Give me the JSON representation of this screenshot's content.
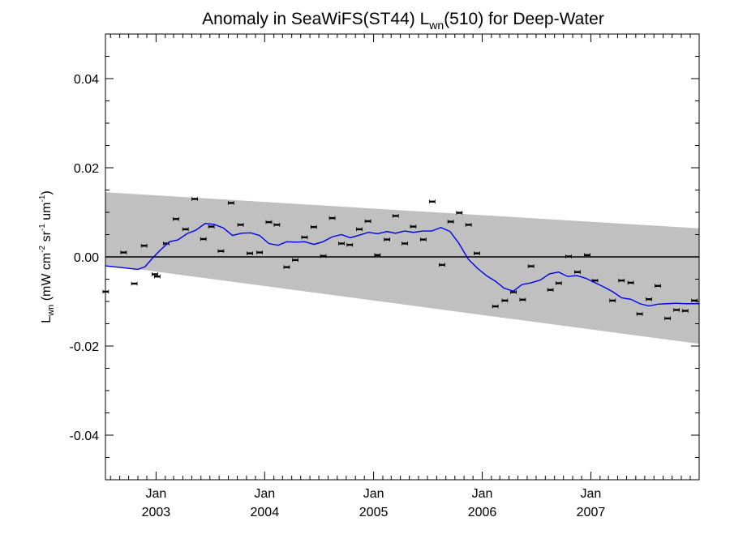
{
  "chart_data": {
    "type": "line",
    "title_parts": {
      "prefix": "Anomaly in SeaWiFS(ST44) L",
      "sub": "wn",
      "suffix": "(510) for Deep-Water"
    },
    "ylabel_parts": {
      "base": "L",
      "sub": "wn",
      "units_open": " (mW cm",
      "exp1": "-2",
      "mid1": " sr",
      "exp2": "-1",
      "mid2": " um",
      "exp3": "-1",
      "close": ")"
    },
    "xlim": [
      "2002-07-15",
      "2007-12-31"
    ],
    "ylim": [
      -0.05,
      0.05
    ],
    "yticks": [
      {
        "value": 0.04,
        "label": "0.04"
      },
      {
        "value": 0.02,
        "label": "0.02"
      },
      {
        "value": 0.0,
        "label": "0.00"
      },
      {
        "value": -0.02,
        "label": "-0.02"
      },
      {
        "value": -0.04,
        "label": "-0.04"
      }
    ],
    "xticks": [
      {
        "date": "2003-01-01",
        "month": "Jan",
        "year": "2003"
      },
      {
        "date": "2004-01-01",
        "month": "Jan",
        "year": "2004"
      },
      {
        "date": "2005-01-01",
        "month": "Jan",
        "year": "2005"
      },
      {
        "date": "2006-01-01",
        "month": "Jan",
        "year": "2006"
      },
      {
        "date": "2007-01-01",
        "month": "Jan",
        "year": "2007"
      }
    ],
    "band": {
      "color": "#c0c0c0",
      "start": {
        "x": "2002-07-15",
        "upper": 0.0145,
        "lower": -0.0018
      },
      "end": {
        "x": "2007-12-31",
        "upper": 0.0064,
        "lower": -0.0195
      }
    },
    "zero_line": {
      "y": 0.0,
      "color": "#000000"
    },
    "series": [
      {
        "kind": "points",
        "color": "#000000",
        "points": [
          {
            "x": "2002-07-16",
            "y": -0.0078
          },
          {
            "x": "2002-09-14",
            "y": 0.001
          },
          {
            "x": "2002-10-20",
            "y": -0.006
          },
          {
            "x": "2002-11-22",
            "y": 0.0025
          },
          {
            "x": "2002-12-28",
            "y": -0.0039
          },
          {
            "x": "2003-01-05",
            "y": -0.0044
          },
          {
            "x": "2003-02-04",
            "y": 0.003
          },
          {
            "x": "2003-03-09",
            "y": 0.0085
          },
          {
            "x": "2003-04-10",
            "y": 0.0062
          },
          {
            "x": "2003-05-11",
            "y": 0.013
          },
          {
            "x": "2003-06-09",
            "y": 0.004
          },
          {
            "x": "2003-07-06",
            "y": 0.0068
          },
          {
            "x": "2003-08-07",
            "y": 0.0013
          },
          {
            "x": "2003-09-10",
            "y": 0.0121
          },
          {
            "x": "2003-10-12",
            "y": 0.0072
          },
          {
            "x": "2003-11-12",
            "y": 0.0008
          },
          {
            "x": "2003-12-15",
            "y": 0.001
          },
          {
            "x": "2004-01-15",
            "y": 0.0078
          },
          {
            "x": "2004-02-11",
            "y": 0.0072
          },
          {
            "x": "2004-03-15",
            "y": -0.0023
          },
          {
            "x": "2004-04-13",
            "y": -0.0007
          },
          {
            "x": "2004-05-14",
            "y": 0.0044
          },
          {
            "x": "2004-06-14",
            "y": 0.0067
          },
          {
            "x": "2004-07-16",
            "y": 0.0002
          },
          {
            "x": "2004-08-15",
            "y": 0.0087
          },
          {
            "x": "2004-09-15",
            "y": 0.003
          },
          {
            "x": "2004-10-13",
            "y": 0.0027
          },
          {
            "x": "2004-11-14",
            "y": 0.0062
          },
          {
            "x": "2004-12-13",
            "y": 0.008
          },
          {
            "x": "2005-01-14",
            "y": 0.0004
          },
          {
            "x": "2005-02-15",
            "y": 0.0039
          },
          {
            "x": "2005-03-16",
            "y": 0.0092
          },
          {
            "x": "2005-04-16",
            "y": 0.003
          },
          {
            "x": "2005-05-14",
            "y": 0.0068
          },
          {
            "x": "2005-06-17",
            "y": 0.0039
          },
          {
            "x": "2005-07-17",
            "y": 0.0124
          },
          {
            "x": "2005-08-19",
            "y": -0.0018
          },
          {
            "x": "2005-09-17",
            "y": 0.0079
          },
          {
            "x": "2005-10-16",
            "y": 0.0099
          },
          {
            "x": "2005-11-16",
            "y": 0.0072
          },
          {
            "x": "2005-12-14",
            "y": 0.0008
          },
          {
            "x": "2006-02-14",
            "y": -0.0111
          },
          {
            "x": "2006-03-18",
            "y": -0.0098
          },
          {
            "x": "2006-04-16",
            "y": -0.0079
          },
          {
            "x": "2006-05-17",
            "y": -0.0096
          },
          {
            "x": "2006-06-14",
            "y": -0.0021
          },
          {
            "x": "2006-08-18",
            "y": -0.0074
          },
          {
            "x": "2006-09-15",
            "y": -0.0059
          },
          {
            "x": "2006-10-18",
            "y": 0.0001
          },
          {
            "x": "2006-11-17",
            "y": -0.0034
          },
          {
            "x": "2006-12-20",
            "y": 0.0004
          },
          {
            "x": "2007-01-15",
            "y": -0.0053
          },
          {
            "x": "2007-03-15",
            "y": -0.0098
          },
          {
            "x": "2007-04-14",
            "y": -0.0053
          },
          {
            "x": "2007-05-15",
            "y": -0.0058
          },
          {
            "x": "2007-06-14",
            "y": -0.0128
          },
          {
            "x": "2007-07-15",
            "y": -0.0095
          },
          {
            "x": "2007-08-14",
            "y": -0.0065
          },
          {
            "x": "2007-09-16",
            "y": -0.0138
          },
          {
            "x": "2007-10-16",
            "y": -0.0119
          },
          {
            "x": "2007-11-14",
            "y": -0.0121
          },
          {
            "x": "2007-12-15",
            "y": -0.0098
          }
        ]
      },
      {
        "kind": "line",
        "color": "#0000ee",
        "points": [
          {
            "x": "2002-07-15",
            "y": -0.002
          },
          {
            "x": "2002-11-01",
            "y": -0.0028
          },
          {
            "x": "2002-11-25",
            "y": -0.0022
          },
          {
            "x": "2002-12-20",
            "y": -0.0003
          },
          {
            "x": "2003-01-15",
            "y": 0.0015
          },
          {
            "x": "2003-02-15",
            "y": 0.0034
          },
          {
            "x": "2003-03-15",
            "y": 0.0038
          },
          {
            "x": "2003-04-15",
            "y": 0.0052
          },
          {
            "x": "2003-05-15",
            "y": 0.006
          },
          {
            "x": "2003-06-15",
            "y": 0.0075
          },
          {
            "x": "2003-07-15",
            "y": 0.0073
          },
          {
            "x": "2003-08-15",
            "y": 0.0065
          },
          {
            "x": "2003-09-15",
            "y": 0.0048
          },
          {
            "x": "2003-10-15",
            "y": 0.0053
          },
          {
            "x": "2003-11-15",
            "y": 0.0054
          },
          {
            "x": "2003-12-15",
            "y": 0.0048
          },
          {
            "x": "2004-01-15",
            "y": 0.003
          },
          {
            "x": "2004-02-15",
            "y": 0.0026
          },
          {
            "x": "2004-03-15",
            "y": 0.0034
          },
          {
            "x": "2004-04-15",
            "y": 0.0033
          },
          {
            "x": "2004-05-15",
            "y": 0.0034
          },
          {
            "x": "2004-06-15",
            "y": 0.0028
          },
          {
            "x": "2004-07-15",
            "y": 0.0034
          },
          {
            "x": "2004-08-15",
            "y": 0.0045
          },
          {
            "x": "2004-09-15",
            "y": 0.005
          },
          {
            "x": "2004-10-15",
            "y": 0.0043
          },
          {
            "x": "2004-11-15",
            "y": 0.0049
          },
          {
            "x": "2004-12-15",
            "y": 0.0055
          },
          {
            "x": "2005-01-15",
            "y": 0.0052
          },
          {
            "x": "2005-02-15",
            "y": 0.0057
          },
          {
            "x": "2005-03-15",
            "y": 0.0053
          },
          {
            "x": "2005-04-15",
            "y": 0.0058
          },
          {
            "x": "2005-05-15",
            "y": 0.0055
          },
          {
            "x": "2005-06-15",
            "y": 0.0058
          },
          {
            "x": "2005-07-15",
            "y": 0.0058
          },
          {
            "x": "2005-08-15",
            "y": 0.0066
          },
          {
            "x": "2005-09-15",
            "y": 0.0057
          },
          {
            "x": "2005-10-15",
            "y": 0.003
          },
          {
            "x": "2005-11-15",
            "y": -0.0005
          },
          {
            "x": "2005-12-15",
            "y": -0.0025
          },
          {
            "x": "2006-01-15",
            "y": -0.0042
          },
          {
            "x": "2006-02-15",
            "y": -0.0055
          },
          {
            "x": "2006-03-15",
            "y": -0.007
          },
          {
            "x": "2006-04-15",
            "y": -0.0077
          },
          {
            "x": "2006-05-15",
            "y": -0.0062
          },
          {
            "x": "2006-06-15",
            "y": -0.0058
          },
          {
            "x": "2006-07-15",
            "y": -0.0052
          },
          {
            "x": "2006-08-15",
            "y": -0.0038
          },
          {
            "x": "2006-09-15",
            "y": -0.0034
          },
          {
            "x": "2006-10-15",
            "y": -0.0044
          },
          {
            "x": "2006-11-15",
            "y": -0.0042
          },
          {
            "x": "2006-12-15",
            "y": -0.0048
          },
          {
            "x": "2007-01-15",
            "y": -0.0058
          },
          {
            "x": "2007-02-15",
            "y": -0.0068
          },
          {
            "x": "2007-03-15",
            "y": -0.0078
          },
          {
            "x": "2007-04-15",
            "y": -0.0092
          },
          {
            "x": "2007-05-15",
            "y": -0.0095
          },
          {
            "x": "2007-06-15",
            "y": -0.0105
          },
          {
            "x": "2007-07-15",
            "y": -0.011
          },
          {
            "x": "2007-08-15",
            "y": -0.0106
          },
          {
            "x": "2007-09-15",
            "y": -0.0105
          },
          {
            "x": "2007-10-15",
            "y": -0.0104
          },
          {
            "x": "2007-11-15",
            "y": -0.0105
          },
          {
            "x": "2007-12-31",
            "y": -0.0105
          }
        ]
      }
    ]
  }
}
